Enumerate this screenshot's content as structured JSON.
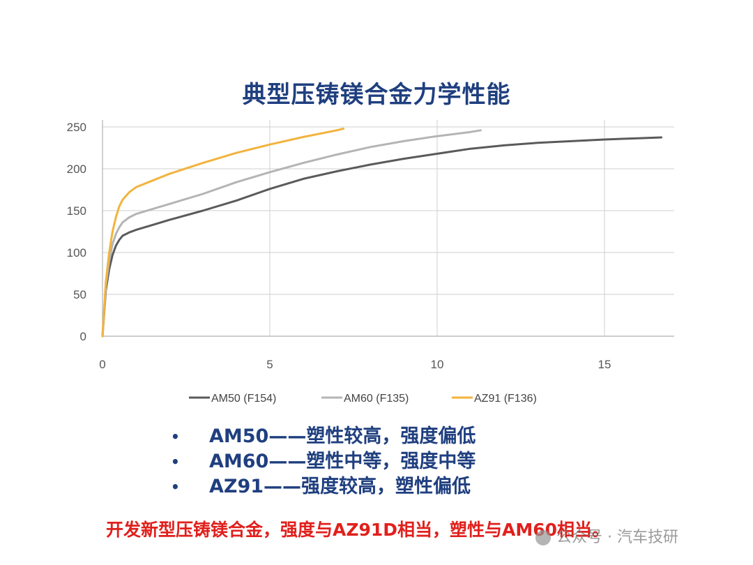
{
  "chart_data": {
    "type": "line",
    "title": "典型压铸镁合金力学性能",
    "xlabel": "",
    "ylabel": "",
    "xlim": [
      0,
      17
    ],
    "ylim": [
      0,
      260
    ],
    "xticks": [
      0,
      5,
      10,
      15
    ],
    "yticks": [
      0,
      50,
      100,
      150,
      200,
      250
    ],
    "grid": true,
    "legend_position": "bottom",
    "series": [
      {
        "name": "AM50 (F154)",
        "color": "#5a5a5a",
        "x": [
          0,
          0.1,
          0.2,
          0.3,
          0.4,
          0.5,
          0.6,
          0.8,
          1,
          1.5,
          2,
          3,
          4,
          5,
          6,
          7,
          8,
          9,
          10,
          11,
          12,
          13,
          14,
          15,
          16,
          16.7
        ],
        "y": [
          0,
          55,
          80,
          97,
          108,
          115,
          120,
          124,
          127,
          133,
          139,
          150,
          162,
          176,
          188,
          197,
          205,
          212,
          218,
          224,
          228,
          231,
          233,
          235,
          236.5,
          237.5
        ]
      },
      {
        "name": "AM60 (F135)",
        "color": "#b4b4b4",
        "x": [
          0,
          0.1,
          0.2,
          0.3,
          0.4,
          0.5,
          0.6,
          0.8,
          1,
          1.5,
          2,
          3,
          4,
          5,
          6,
          7,
          8,
          9,
          10,
          11,
          11.3
        ],
        "y": [
          0,
          60,
          90,
          110,
          122,
          130,
          136,
          142,
          146,
          152,
          158,
          170,
          184,
          196,
          207,
          217,
          226,
          233,
          239,
          244,
          246
        ]
      },
      {
        "name": "AZ91 (F136)",
        "color": "#f2b33d",
        "x": [
          0,
          0.1,
          0.2,
          0.3,
          0.4,
          0.5,
          0.6,
          0.8,
          1,
          1.5,
          2,
          3,
          4,
          5,
          6,
          7,
          7.2
        ],
        "y": [
          0,
          65,
          100,
          125,
          142,
          155,
          163,
          172,
          178,
          186,
          194,
          207,
          219,
          229,
          238,
          246,
          248
        ]
      }
    ]
  },
  "bullets": [
    {
      "label": "AM50——塑性较高，强度偏低"
    },
    {
      "label": "AM60——塑性中等，强度中等"
    },
    {
      "label": "AZ91——强度较高，塑性偏低"
    }
  ],
  "bullet_symbol": "•",
  "conclusion": "开发新型压铸镁合金，强度与AZ91D相当，塑性与AM60相当。",
  "watermark": "公众号 · 汽车技研"
}
